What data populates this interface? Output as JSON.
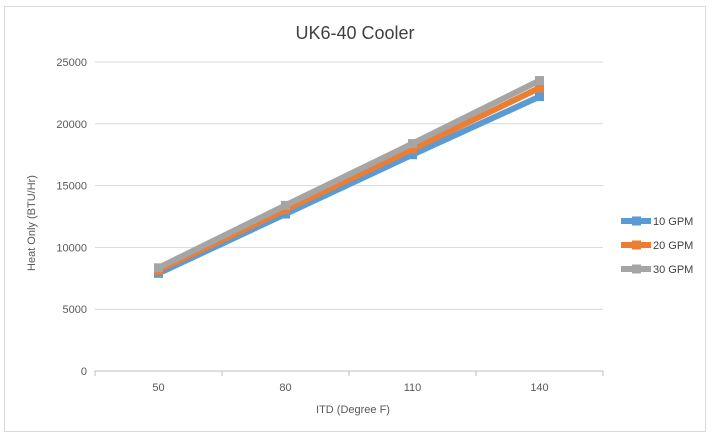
{
  "chart_data": {
    "type": "line",
    "title": "UK6-40 Cooler",
    "xlabel": "ITD (Degree  F)",
    "ylabel": "Heat Only (BTU/Hr)",
    "categories": [
      "50",
      "80",
      "110",
      "140"
    ],
    "ylim": [
      0,
      25000
    ],
    "yticks": [
      "0",
      "5000",
      "10000",
      "15000",
      "20000",
      "25000"
    ],
    "grid": "horizontal",
    "legend_position": "right",
    "series": [
      {
        "name": "10 GPM",
        "color": "#5B9BD5",
        "values": [
          7900,
          12700,
          17500,
          22200
        ]
      },
      {
        "name": "20 GPM",
        "color": "#ED7D31",
        "values": [
          8150,
          13050,
          17950,
          22900
        ]
      },
      {
        "name": "30 GPM",
        "color": "#A5A5A5",
        "values": [
          8350,
          13400,
          18400,
          23500
        ]
      }
    ]
  }
}
